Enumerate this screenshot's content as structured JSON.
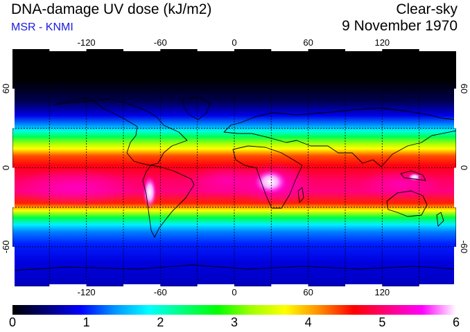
{
  "header": {
    "title": "DNA-damage UV dose (kJ/m2)",
    "credit": "MSR - KNMI",
    "sky_condition": "Clear-sky",
    "date": "9 November 1970"
  },
  "map": {
    "projection": "equirectangular",
    "lon_range": [
      -180,
      180
    ],
    "lat_range": [
      -90,
      90
    ],
    "lon_ticks": [
      "-120",
      "-60",
      "0",
      "60",
      "120"
    ],
    "lat_ticks": [
      "60",
      "0",
      "-60"
    ],
    "grid": "dotted 30-degree graticule",
    "coastlines": true
  },
  "colorbar": {
    "labels": [
      "0",
      "1",
      "2",
      "3",
      "4",
      "5",
      "6"
    ],
    "min": 0,
    "max": 6,
    "colors": [
      "#000000",
      "#00007a",
      "#0000ff",
      "#0096ff",
      "#00ffff",
      "#00ff7a",
      "#00ff00",
      "#a0ff00",
      "#ffff00",
      "#ff8c00",
      "#ff0000",
      "#ff0080",
      "#ff00ff",
      "#ffffff"
    ]
  }
}
